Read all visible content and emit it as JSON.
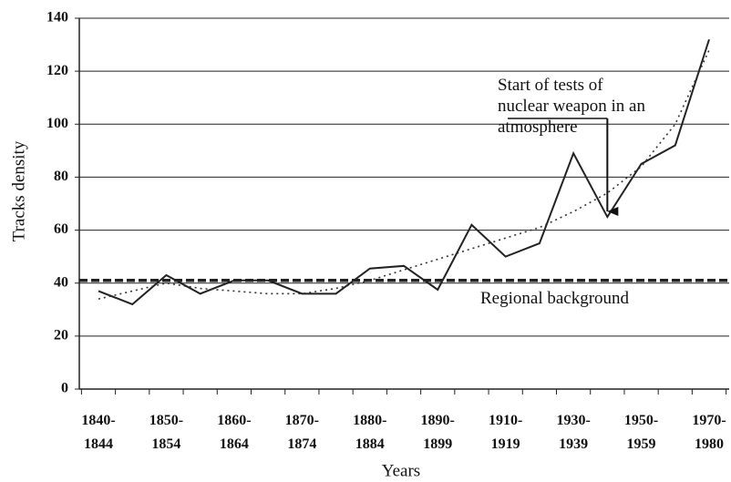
{
  "chart_data": {
    "type": "line",
    "x_label": "Years",
    "y_label": "Tracks density",
    "categories": [
      "1840-\n1844",
      null,
      "1850-\n1854",
      null,
      "1860-\n1864",
      null,
      "1870-\n1874",
      null,
      "1880-\n1884",
      null,
      "1890-\n1899",
      null,
      "1910-\n1919",
      null,
      "1930-\n1939",
      null,
      "1950-\n1959",
      null,
      "1970-\n1980"
    ],
    "series": [
      {
        "style": "solid",
        "color": "#222222",
        "values": [
          37,
          32,
          43,
          36,
          41,
          41,
          36,
          36,
          45.5,
          46.5,
          37.5,
          62,
          50,
          55,
          89,
          65,
          85,
          92,
          132
        ]
      },
      {
        "style": "dotted",
        "color": "#333333",
        "values": [
          34,
          37,
          40,
          38,
          37,
          36,
          36,
          38,
          41,
          45,
          49,
          53,
          57,
          61,
          67,
          74,
          84,
          100,
          128
        ]
      }
    ],
    "reference_line": {
      "value": 41,
      "label": "Regional background"
    },
    "annotation": {
      "text": "Start of tests of\nnuclear weapon in an\natmosphere",
      "index": 15
    },
    "ylim": [
      0,
      140
    ],
    "yticks": [
      0,
      20,
      40,
      60,
      80,
      100,
      120,
      140
    ],
    "grid": true
  }
}
